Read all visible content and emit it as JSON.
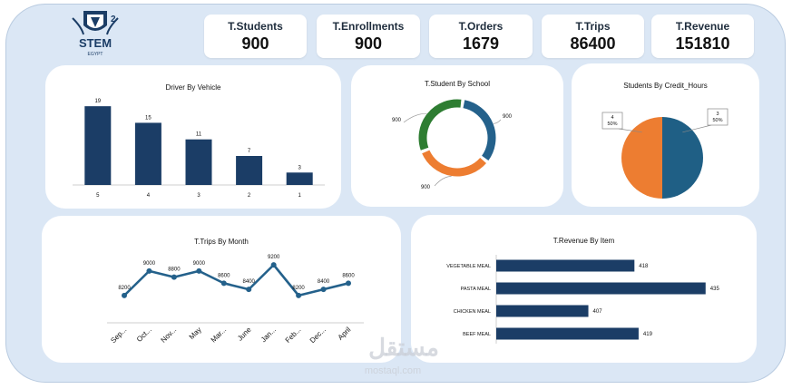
{
  "logo": {
    "text": "STEM",
    "subtext": "EGYPT",
    "mark": "2"
  },
  "kpis": [
    {
      "label": "T.Students",
      "value": "900"
    },
    {
      "label": "T.Enrollments",
      "value": "900"
    },
    {
      "label": "T.Orders",
      "value": "1679"
    },
    {
      "label": "T.Trips",
      "value": "86400"
    },
    {
      "label": "T.Revenue",
      "value": "151810"
    }
  ],
  "watermark": {
    "arabic": "مستقل",
    "latin": "mostaql.com"
  },
  "chart_data": [
    {
      "id": "driver",
      "type": "bar",
      "title": "Driver By Vehicle",
      "categories": [
        "5",
        "4",
        "3",
        "2",
        "1"
      ],
      "values": [
        19,
        15,
        11,
        7,
        3
      ],
      "ylim": [
        0,
        21
      ],
      "color": "#1b3d66"
    },
    {
      "id": "school",
      "type": "pie",
      "title": "T.Student By School",
      "style": "donut",
      "labels": [
        "900",
        "900",
        "900"
      ],
      "values": [
        900,
        900,
        900
      ],
      "colors": [
        "#24618b",
        "#ed7d31",
        "#2e7d32"
      ]
    },
    {
      "id": "credit",
      "type": "pie",
      "title": "Students By Credit_Hours",
      "labels": [
        "3",
        "4"
      ],
      "values": [
        50,
        50
      ],
      "percents": [
        "50%",
        "50%"
      ],
      "colors": [
        "#1f5f85",
        "#ed7d31"
      ]
    },
    {
      "id": "trips",
      "type": "line",
      "title": "T.Trips By Month",
      "categories": [
        "Sep...",
        "Oct...",
        "Nov...",
        "May",
        "Mar...",
        "June",
        "Jan...",
        "Feb...",
        "Dec...",
        "April"
      ],
      "values": [
        8200,
        9000,
        8800,
        9000,
        8600,
        8400,
        9200,
        8200,
        8400,
        8600
      ],
      "labels": [
        "8200",
        "9000",
        "8800",
        "9000",
        "8600",
        "8400",
        "9200",
        "8200",
        "8400",
        "8600"
      ],
      "ylim": [
        7900,
        9500
      ],
      "color": "#24618b"
    },
    {
      "id": "revenue",
      "type": "bar",
      "orientation": "horizontal",
      "title": "T.Revenue By Item",
      "categories": [
        "VEGETABLE MEAL",
        "PASTA MEAL",
        "CHICKEN MEAL",
        "BEEF MEAL"
      ],
      "values": [
        418,
        435,
        407,
        419
      ],
      "xlim": [
        385,
        437
      ],
      "color": "#1b3d66"
    }
  ]
}
